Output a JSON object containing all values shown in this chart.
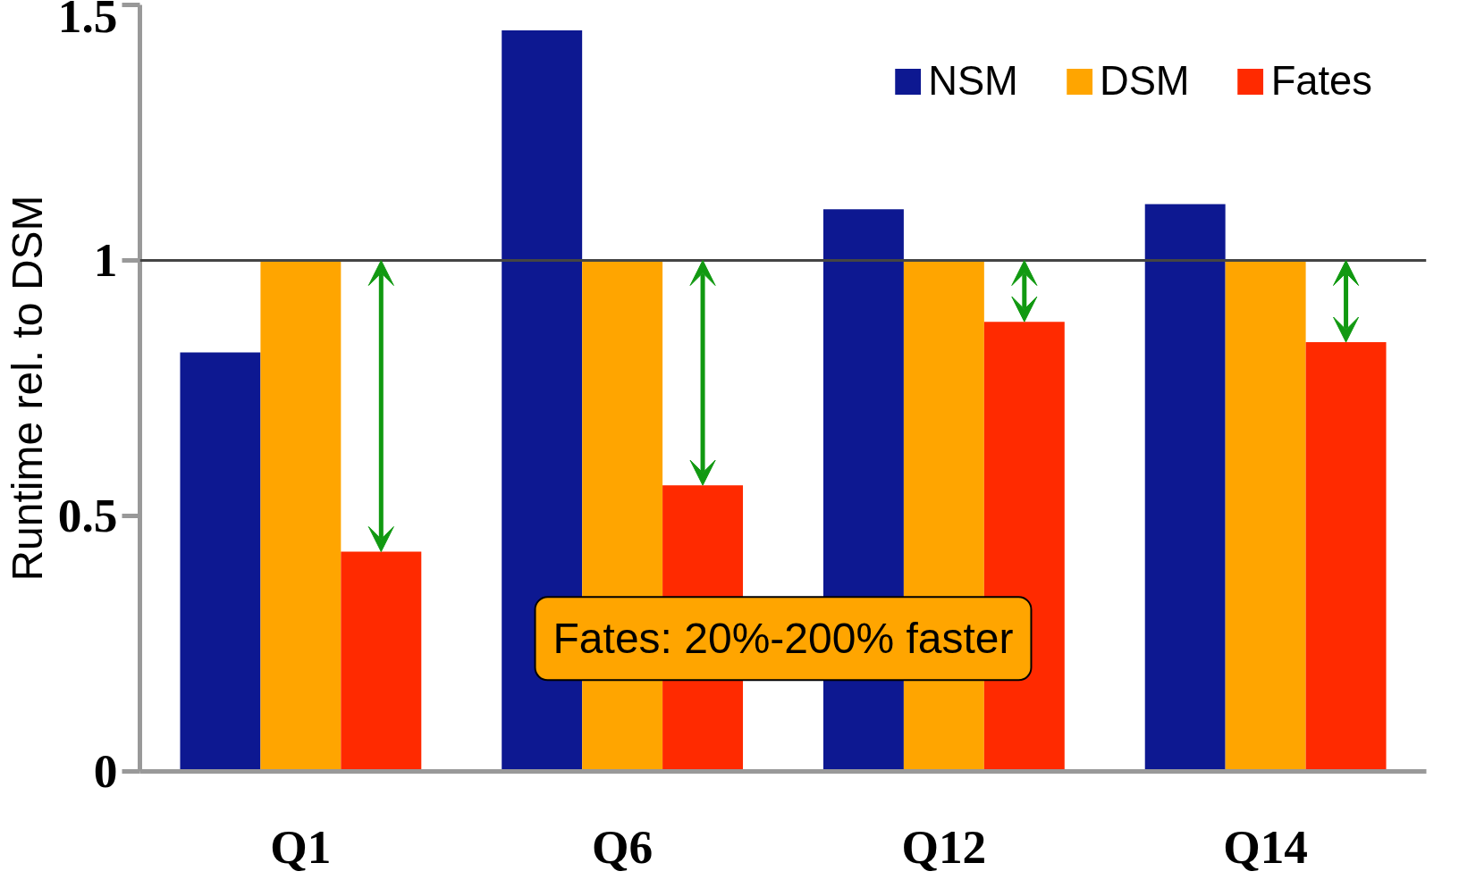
{
  "chart_data": {
    "type": "bar",
    "ylabel": "Runtime rel. to DSM",
    "categories": [
      "Q1",
      "Q6",
      "Q12",
      "Q14"
    ],
    "series": [
      {
        "name": "NSM",
        "color": "#0d1891",
        "values": [
          0.82,
          1.45,
          1.1,
          1.11
        ]
      },
      {
        "name": "DSM",
        "color": "#ffa500",
        "values": [
          1,
          1,
          1,
          1
        ]
      },
      {
        "name": "Fates",
        "color": "#ff2a00",
        "values": [
          0.43,
          0.56,
          0.88,
          0.84
        ]
      }
    ],
    "ylim": [
      0,
      1.5
    ],
    "yticks": [
      0,
      0.5,
      1,
      1.5
    ],
    "grid": false,
    "legend": "top right",
    "ref_lines": [
      {
        "axis": "y",
        "value": 1,
        "color": "#444444"
      }
    ],
    "annotations": [
      "Fates: 20%-200% faster"
    ]
  }
}
